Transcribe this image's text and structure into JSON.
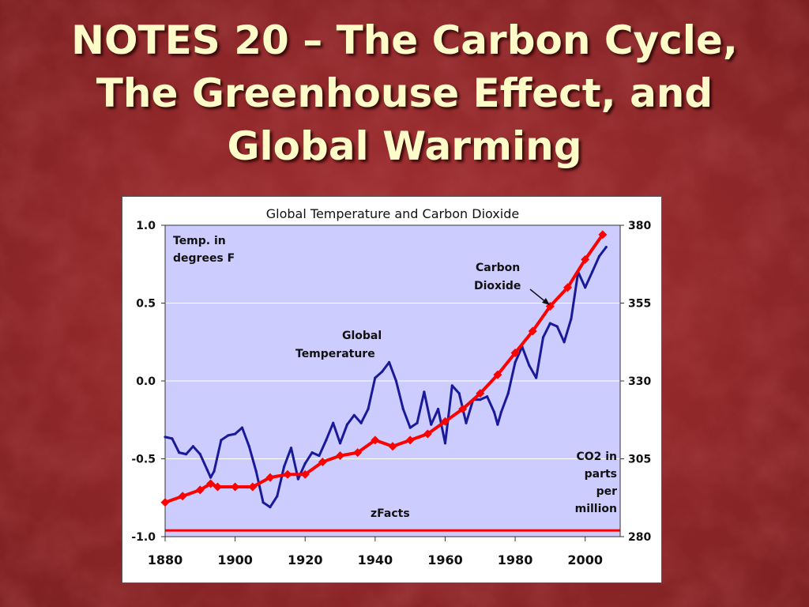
{
  "slide": {
    "title_lines": [
      "NOTES 20 – The Carbon Cycle,",
      "The Greenhouse Effect, and",
      "Global Warming"
    ]
  },
  "colors": {
    "background": "#9a2a2c",
    "title_text": "#fdfcc8",
    "plot_area": "#ccccff",
    "temperature_line": "#1a1a99",
    "co2_line": "#ff0000",
    "baseline": "#ff0000"
  },
  "chart_data": {
    "type": "line",
    "title": "Global Temperature and Carbon Dioxide",
    "source_label": "zFacts",
    "left_axis_label_lines": [
      "Temp. in",
      "degrees F"
    ],
    "right_axis_label_lines": [
      "CO2 in",
      "parts",
      "per",
      "million"
    ],
    "xlim": [
      1880,
      2010
    ],
    "ylim_left": [
      -1.0,
      1.0
    ],
    "ylim_right": [
      280,
      380
    ],
    "x_ticks": [
      1880,
      1900,
      1920,
      1940,
      1960,
      1980,
      2000
    ],
    "y_ticks_left": [
      "1.0",
      "0.5",
      "0.0",
      "-0.5",
      "-1.0"
    ],
    "y_ticks_right": [
      "380",
      "355",
      "330",
      "305",
      "280"
    ],
    "grid": "horizontal",
    "baseline_value_left": -0.96,
    "annotations": [
      {
        "lines": [
          "Global",
          "Temperature"
        ],
        "series": "temperature"
      },
      {
        "lines": [
          "Carbon",
          "Dioxide"
        ],
        "series": "co2",
        "arrow": true
      }
    ],
    "series": [
      {
        "name": "Global Temperature",
        "axis": "left",
        "x": [
          1880,
          1882,
          1884,
          1886,
          1888,
          1890,
          1892,
          1893,
          1894,
          1896,
          1898,
          1900,
          1902,
          1904,
          1906,
          1908,
          1910,
          1912,
          1914,
          1916,
          1918,
          1920,
          1922,
          1924,
          1926,
          1928,
          1930,
          1932,
          1934,
          1936,
          1938,
          1940,
          1942,
          1944,
          1946,
          1948,
          1950,
          1952,
          1954,
          1956,
          1958,
          1960,
          1962,
          1964,
          1966,
          1968,
          1970,
          1972,
          1974,
          1975,
          1976,
          1978,
          1980,
          1982,
          1984,
          1986,
          1988,
          1990,
          1992,
          1994,
          1996,
          1998,
          2000,
          2002,
          2004,
          2006
        ],
        "y": [
          -0.36,
          -0.37,
          -0.46,
          -0.47,
          -0.42,
          -0.47,
          -0.57,
          -0.62,
          -0.58,
          -0.38,
          -0.35,
          -0.34,
          -0.3,
          -0.42,
          -0.58,
          -0.78,
          -0.81,
          -0.74,
          -0.55,
          -0.43,
          -0.63,
          -0.53,
          -0.46,
          -0.48,
          -0.38,
          -0.27,
          -0.4,
          -0.28,
          -0.22,
          -0.27,
          -0.18,
          0.02,
          0.06,
          0.12,
          0.0,
          -0.18,
          -0.3,
          -0.27,
          -0.07,
          -0.28,
          -0.18,
          -0.4,
          -0.03,
          -0.08,
          -0.27,
          -0.12,
          -0.12,
          -0.1,
          -0.2,
          -0.28,
          -0.2,
          -0.08,
          0.12,
          0.22,
          0.1,
          0.02,
          0.28,
          0.37,
          0.35,
          0.25,
          0.4,
          0.7,
          0.6,
          0.7,
          0.8,
          0.86
        ]
      },
      {
        "name": "Carbon Dioxide",
        "axis": "right",
        "x": [
          1880,
          1885,
          1890,
          1893,
          1895,
          1900,
          1905,
          1910,
          1915,
          1920,
          1925,
          1930,
          1935,
          1940,
          1945,
          1950,
          1955,
          1960,
          1965,
          1970,
          1975,
          1980,
          1985,
          1990,
          1995,
          2000,
          2005
        ],
        "y": [
          291,
          293,
          295,
          297,
          296,
          296,
          296,
          299,
          300,
          300,
          304,
          306,
          307,
          311,
          309,
          311,
          313,
          317,
          321,
          326,
          332,
          339,
          346,
          354,
          360,
          369,
          377
        ]
      }
    ]
  }
}
